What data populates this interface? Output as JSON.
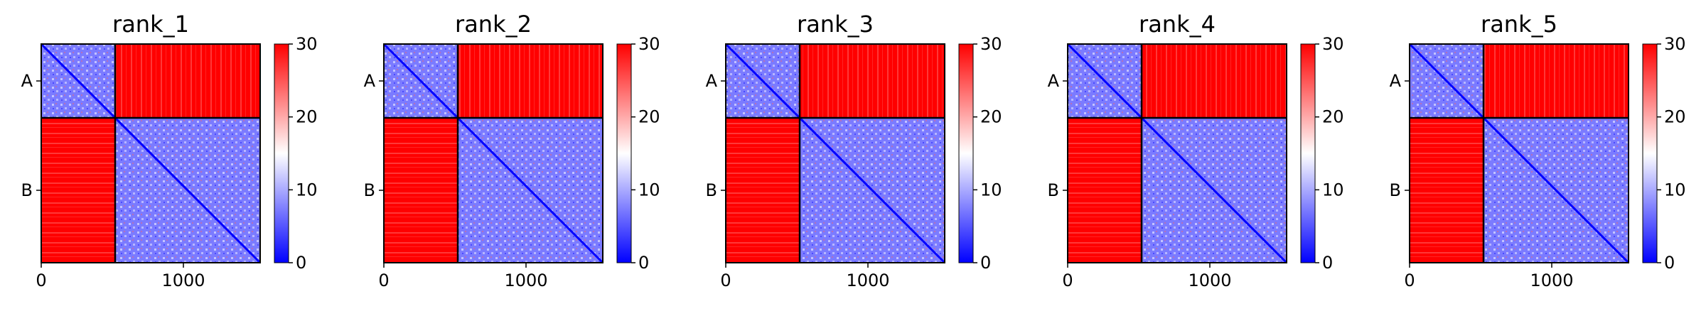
{
  "chart_data": [
    {
      "type": "heatmap",
      "title": "rank_1",
      "chains": [
        {
          "label": "A",
          "start": 0,
          "end": 520
        },
        {
          "label": "B",
          "start": 520,
          "end": 1540
        }
      ],
      "x_ticks": [
        0,
        1000
      ],
      "xlim": [
        0,
        1540
      ],
      "colorbar": {
        "ticks": [
          0,
          10,
          20,
          30
        ],
        "range": [
          0,
          30
        ],
        "colormap": "bwr"
      }
    },
    {
      "type": "heatmap",
      "title": "rank_2",
      "chains": [
        {
          "label": "A",
          "start": 0,
          "end": 520
        },
        {
          "label": "B",
          "start": 520,
          "end": 1540
        }
      ],
      "x_ticks": [
        0,
        1000
      ],
      "xlim": [
        0,
        1540
      ],
      "colorbar": {
        "ticks": [
          0,
          10,
          20,
          30
        ],
        "range": [
          0,
          30
        ],
        "colormap": "bwr"
      }
    },
    {
      "type": "heatmap",
      "title": "rank_3",
      "chains": [
        {
          "label": "A",
          "start": 0,
          "end": 520
        },
        {
          "label": "B",
          "start": 520,
          "end": 1540
        }
      ],
      "x_ticks": [
        0,
        1000
      ],
      "xlim": [
        0,
        1540
      ],
      "colorbar": {
        "ticks": [
          0,
          10,
          20,
          30
        ],
        "range": [
          0,
          30
        ],
        "colormap": "bwr"
      }
    },
    {
      "type": "heatmap",
      "title": "rank_4",
      "chains": [
        {
          "label": "A",
          "start": 0,
          "end": 520
        },
        {
          "label": "B",
          "start": 520,
          "end": 1540
        }
      ],
      "x_ticks": [
        0,
        1000
      ],
      "xlim": [
        0,
        1540
      ],
      "colorbar": {
        "ticks": [
          0,
          10,
          20,
          30
        ],
        "range": [
          0,
          30
        ],
        "colormap": "bwr"
      }
    },
    {
      "type": "heatmap",
      "title": "rank_5",
      "chains": [
        {
          "label": "A",
          "start": 0,
          "end": 520
        },
        {
          "label": "B",
          "start": 520,
          "end": 1540
        }
      ],
      "x_ticks": [
        0,
        1000
      ],
      "xlim": [
        0,
        1540
      ],
      "colorbar": {
        "ticks": [
          0,
          10,
          20,
          30
        ],
        "range": [
          0,
          30
        ],
        "colormap": "bwr"
      }
    }
  ],
  "colors": {
    "low": "#0000ff",
    "mid": "#ffffff",
    "high": "#ff0000",
    "border": "#000000"
  }
}
